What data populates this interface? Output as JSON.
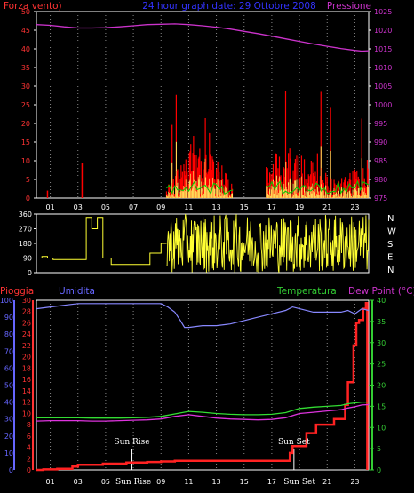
{
  "header": {
    "left_label": "Forza vento)",
    "center_label": "24 hour graph date: 29 Ottobre 2008",
    "right_label": "Pressione"
  },
  "colors": {
    "background": "#000000",
    "frame": "#ffffff",
    "wind_red": "#ff0000",
    "wind_gust_red": "#ff2222",
    "wind_yellow": "#ffff66",
    "wind_green": "#00cc00",
    "pressure": "#cc33cc",
    "direction": "#ffff33",
    "direction_baseline": "#ffff33",
    "rain": "#ff2222",
    "humidity": "#8888ff",
    "temperature": "#33dd33",
    "dew_point": "#dd33dd",
    "left_axis_red": "#ff3333",
    "left_axis_blue": "#6666ff",
    "right_axis_green": "#33cc33",
    "right_axis_magenta": "#cc33cc"
  },
  "chart_data": [
    {
      "type": "area",
      "panel": "wind",
      "title": "24 hour graph date: 29 Ottobre 2008",
      "left_axis": {
        "label": "Forza vento)",
        "ticks": [
          0,
          5,
          10,
          15,
          20,
          25,
          30,
          35,
          40,
          45,
          50
        ],
        "ylim": [
          0,
          50
        ]
      },
      "right_axis": {
        "label": "Pressione",
        "ticks": [
          975,
          980,
          985,
          990,
          995,
          1000,
          1005,
          1010,
          1015,
          1020,
          1025
        ],
        "ylim": [
          975,
          1025
        ]
      },
      "x_ticks": [
        "01",
        "03",
        "05",
        "07",
        "09",
        "11",
        "13",
        "15",
        "17",
        "19",
        "21",
        "23"
      ],
      "x_range_hours": [
        0,
        24
      ],
      "pressure": {
        "x": [
          0,
          1,
          2,
          3,
          4,
          5,
          6,
          7,
          8,
          9,
          10,
          11,
          12,
          13,
          14,
          15,
          16,
          17,
          18,
          19,
          20,
          21,
          22,
          23,
          23.5,
          24
        ],
        "y": [
          1021.5,
          1021.3,
          1020.9,
          1020.6,
          1020.6,
          1020.7,
          1020.9,
          1021.2,
          1021.5,
          1021.6,
          1021.7,
          1021.5,
          1021.2,
          1020.8,
          1020.3,
          1019.7,
          1019.1,
          1018.4,
          1017.7,
          1017,
          1016.3,
          1015.7,
          1015.1,
          1014.6,
          1014.4,
          1014.5
        ]
      },
      "wind": {
        "calm_until_hour": 9.4,
        "early_spikes": [
          {
            "x": 0.8,
            "y": 2
          },
          {
            "x": 3.3,
            "y": 9.5
          }
        ],
        "active_windows": [
          [
            9.4,
            14.2
          ],
          [
            16.6,
            24
          ]
        ],
        "typical_max": 12,
        "peak": 30
      }
    },
    {
      "type": "line",
      "panel": "direction",
      "left_axis": {
        "ticks": [
          0,
          90,
          180,
          270,
          360
        ],
        "ylim": [
          0,
          360
        ]
      },
      "right_axis": {
        "ticks": [
          "N",
          "W",
          "S",
          "E",
          "N"
        ]
      },
      "x_range_hours": [
        0,
        24
      ],
      "series": [
        {
          "x": [
            0,
            0.4,
            0.4,
            0.8,
            0.8,
            1.2,
            1.2,
            3.6,
            3.6,
            4.0,
            4.0,
            4.4,
            4.4,
            4.8,
            4.8,
            5.4,
            5.4,
            8.2,
            8.2,
            9.0,
            9.0,
            9.4
          ],
          "y": [
            90,
            90,
            100,
            100,
            90,
            90,
            80,
            80,
            340,
            340,
            270,
            270,
            340,
            340,
            90,
            90,
            50,
            50,
            120,
            120,
            180,
            180
          ]
        }
      ],
      "oscillation_window": [
        9.4,
        24
      ],
      "oscillation_range": [
        0,
        360
      ]
    },
    {
      "type": "line",
      "panel": "weather",
      "left_axis_1": {
        "label": "Pioggia",
        "ticks": [
          0,
          2,
          4,
          6,
          8,
          10,
          12,
          14,
          16,
          18,
          20,
          22,
          24,
          26,
          28,
          30
        ],
        "ylim": [
          0,
          30
        ]
      },
      "left_axis_2": {
        "label": "Umidita",
        "ticks": [
          0,
          10,
          20,
          30,
          40,
          50,
          60,
          70,
          80,
          90,
          100
        ],
        "ylim": [
          0,
          100
        ]
      },
      "right_axis": {
        "label": "Temperatura",
        "label2": "Dew Point (°C)",
        "ticks": [
          0,
          5,
          10,
          15,
          20,
          25,
          30,
          35,
          40
        ],
        "ylim": [
          0,
          40
        ]
      },
      "x_ticks": [
        "01",
        "03",
        "05",
        "Sun Rise",
        "09",
        "11",
        "13",
        "15",
        "17",
        "Sun Set",
        "21",
        "23"
      ],
      "x_range_hours": [
        0,
        24
      ],
      "annotations": [
        {
          "text": "Sun Rise",
          "x": 6.9
        },
        {
          "text": "Sun Set",
          "x": 18.6
        }
      ],
      "series": [
        {
          "name": "Pioggia",
          "axis": "left1",
          "x": [
            0,
            0.5,
            1.5,
            2.6,
            3,
            4.8,
            6.5,
            8,
            9,
            10,
            11,
            12,
            13,
            14,
            15,
            16,
            17,
            18,
            18.3,
            18.5,
            19.5,
            20.2,
            21.5,
            22.3,
            22.5,
            22.9,
            23.1,
            23.3,
            23.6,
            23.8,
            23.9
          ],
          "y": [
            0,
            0.1,
            0.2,
            0.6,
            0.9,
            1.1,
            1.3,
            1.4,
            1.5,
            1.6,
            1.6,
            1.6,
            1.6,
            1.6,
            1.6,
            1.6,
            1.6,
            1.6,
            3,
            4.2,
            6.5,
            8,
            9,
            11.5,
            15.5,
            22,
            26,
            26.5,
            28.5,
            29.5,
            0
          ]
        },
        {
          "name": "Umidita",
          "axis": "left2",
          "x": [
            0,
            1,
            2,
            3,
            4,
            5,
            6,
            7,
            8,
            9,
            9.5,
            10,
            10.4,
            10.7,
            11,
            12,
            13,
            14,
            15,
            16,
            17,
            18,
            18.5,
            19,
            20,
            21,
            22,
            22.5,
            23,
            23.5,
            24
          ],
          "y": [
            95,
            96,
            97,
            98,
            98,
            98,
            98,
            98,
            98,
            98,
            96,
            93,
            88,
            84,
            84,
            85,
            85,
            86,
            88,
            90,
            92,
            94,
            96,
            95,
            93,
            93,
            93,
            94,
            92,
            95,
            94
          ]
        },
        {
          "name": "Temperatura",
          "axis": "right",
          "x": [
            0,
            1,
            2,
            3,
            4,
            5,
            6,
            7,
            8,
            9,
            10,
            11,
            12,
            13,
            14,
            15,
            16,
            17,
            18,
            19,
            20,
            21,
            22,
            22.5,
            23,
            23.5,
            24
          ],
          "y": [
            12.3,
            12.3,
            12.3,
            12.3,
            12.2,
            12.2,
            12.2,
            12.3,
            12.4,
            12.6,
            13.2,
            13.8,
            13.6,
            13.3,
            13.1,
            13.0,
            13.0,
            13.1,
            13.5,
            14.5,
            14.8,
            15.0,
            15.2,
            15.6,
            15.8,
            16.0,
            16.0
          ]
        },
        {
          "name": "Dew Point",
          "axis": "right",
          "x": [
            0,
            1,
            2,
            3,
            4,
            5,
            6,
            7,
            8,
            9,
            10,
            11,
            12,
            13,
            14,
            15,
            16,
            17,
            18,
            19,
            20,
            21,
            22,
            22.5,
            23,
            23.5,
            24
          ],
          "y": [
            11.5,
            11.6,
            11.6,
            11.6,
            11.5,
            11.5,
            11.6,
            11.7,
            11.8,
            12.0,
            12.6,
            13.0,
            12.6,
            12.2,
            12.0,
            11.9,
            11.8,
            11.9,
            12.3,
            13.3,
            13.6,
            13.9,
            14.2,
            14.6,
            14.9,
            15.3,
            15.4
          ]
        }
      ]
    }
  ]
}
